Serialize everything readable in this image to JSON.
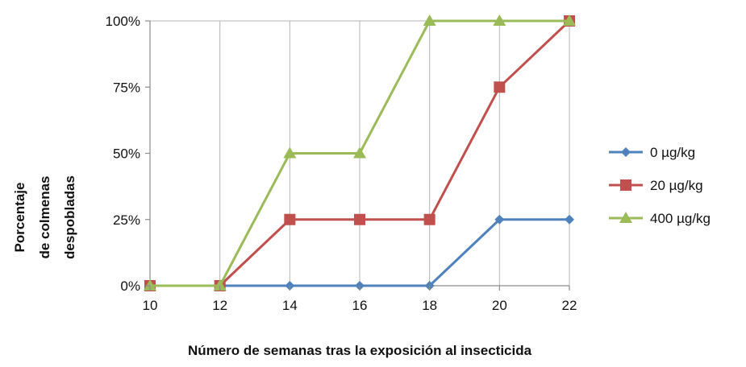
{
  "chart_data": {
    "type": "line",
    "title": "",
    "xlabel": "Número de semanas tras la exposición al insecticida",
    "ylabel_lines": [
      "Porcentaje",
      "de colmenas",
      "despobladas"
    ],
    "x": [
      10,
      12,
      14,
      16,
      18,
      20,
      22
    ],
    "x_tick_labels": [
      "10",
      "12",
      "14",
      "16",
      "18",
      "20",
      "22"
    ],
    "y_tick_values": [
      0,
      25,
      50,
      75,
      100
    ],
    "y_tick_labels": [
      "0%",
      "25%",
      "50%",
      "75%",
      "100%"
    ],
    "xlim": [
      10,
      22
    ],
    "ylim": [
      0,
      100
    ],
    "grid": "vertical",
    "legend_position": "right",
    "series": [
      {
        "name": "0 µg/kg",
        "marker": "diamond",
        "color": "#4f81bd",
        "values": [
          0,
          0,
          0,
          0,
          0,
          25,
          25
        ]
      },
      {
        "name": "20 µg/kg",
        "marker": "square",
        "color": "#c0504d",
        "values": [
          0,
          0,
          25,
          25,
          25,
          75,
          100
        ]
      },
      {
        "name": "400 µg/kg",
        "marker": "triangle",
        "color": "#9bbb59",
        "values": [
          0,
          0,
          50,
          50,
          100,
          100,
          100
        ]
      }
    ]
  }
}
